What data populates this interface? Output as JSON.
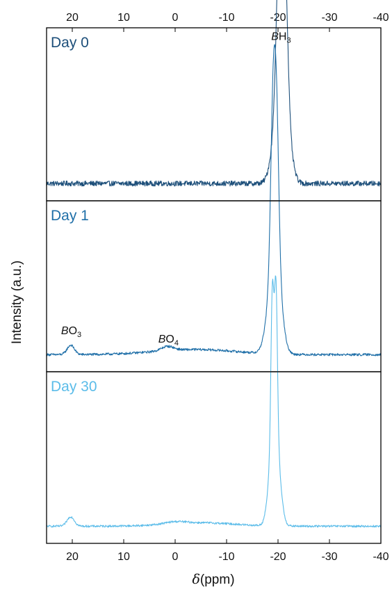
{
  "chart_data": {
    "type": "line",
    "xlabel": "δ (ppm)",
    "xlabel_symbol": "δ",
    "xlabel_unit": "(ppm)",
    "ylabel": "Intensity (a.u.)",
    "x_reversed": true,
    "xlim": [
      25,
      -40
    ],
    "x_ticks": [
      20,
      10,
      0,
      -10,
      -20,
      -30,
      -40
    ],
    "x_tick_labels": [
      "20",
      "10",
      "0",
      "-10",
      "-20",
      "-30",
      "-40"
    ],
    "y_ticks_shown": false,
    "grid": false,
    "colors": {
      "day0": "#1d4f7a",
      "day1": "#1f6fa8",
      "day30": "#5bbce9",
      "axis": "#000000"
    },
    "panels": [
      {
        "label": "Day 0",
        "baseline": 0.1,
        "peaks": [
          {
            "x": -20.2,
            "height": 0.85,
            "width": 0.55
          },
          {
            "x": -21.3,
            "height": 0.82,
            "width": 0.55
          },
          {
            "x": -20.0,
            "height": 0.38,
            "width": 1.1
          },
          {
            "x": -21.6,
            "height": 0.3,
            "width": 1.0
          }
        ],
        "noise": 0.015,
        "annotations": [
          {
            "label": "BH",
            "sub": "3",
            "x": -20.6,
            "y": 0.93
          }
        ]
      },
      {
        "label": "Day 1",
        "baseline": 0.1,
        "peaks": [
          {
            "x": 20.3,
            "height": 0.055,
            "width": 0.7
          },
          {
            "x": 1.5,
            "height": 0.025,
            "width": 1.2
          },
          {
            "x": -4.0,
            "height": 0.03,
            "width": 8.0
          },
          {
            "x": -19.0,
            "height": 0.84,
            "width": 0.45
          },
          {
            "x": -19.7,
            "height": 0.82,
            "width": 0.45
          },
          {
            "x": -18.9,
            "height": 0.35,
            "width": 1.1
          },
          {
            "x": -19.9,
            "height": 0.3,
            "width": 1.0
          }
        ],
        "noise": 0.007,
        "annotations": [
          {
            "label": "BO",
            "sub": "3",
            "x": 20.2,
            "y": 0.22
          },
          {
            "label": "BO",
            "sub": "4",
            "x": 1.3,
            "y": 0.17
          }
        ]
      },
      {
        "label": "Day 30",
        "baseline": 0.1,
        "peaks": [
          {
            "x": 20.3,
            "height": 0.055,
            "width": 0.7
          },
          {
            "x": 0.0,
            "height": 0.012,
            "width": 2.0
          },
          {
            "x": -5.0,
            "height": 0.02,
            "width": 6.5
          },
          {
            "x": -18.9,
            "height": 0.86,
            "width": 0.28
          },
          {
            "x": -19.6,
            "height": 0.86,
            "width": 0.28
          },
          {
            "x": -18.9,
            "height": 0.35,
            "width": 0.8
          },
          {
            "x": -19.8,
            "height": 0.32,
            "width": 0.8
          }
        ],
        "noise": 0.006,
        "annotations": []
      }
    ]
  }
}
